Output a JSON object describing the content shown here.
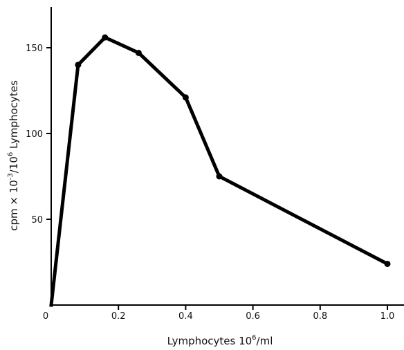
{
  "chart_data": {
    "type": "line",
    "title": "",
    "xlabel": "Lymphocytes 10",
    "xlabel_sup": "6",
    "xlabel_suffix": "/ml",
    "ylabel": "cpm × 10",
    "ylabel_sup1": "-3",
    "ylabel_mid": "/10",
    "ylabel_sup2": "6",
    "ylabel_suffix": " Lymphocytes",
    "xlim": [
      0,
      1.05
    ],
    "ylim": [
      0,
      180
    ],
    "x_ticks": [
      0,
      0.2,
      0.4,
      0.6,
      0.8,
      1.0
    ],
    "x_tick_labels": [
      "0",
      "0.2",
      "0.4",
      "0.6",
      "0.8",
      "1.0"
    ],
    "y_ticks": [
      50,
      100,
      150
    ],
    "y_tick_labels": [
      "50",
      "100",
      "150"
    ],
    "grid": false,
    "series": [
      {
        "x": [
          0,
          0.08,
          0.16,
          0.26,
          0.4,
          0.5,
          1.0
        ],
        "y": [
          0,
          140,
          156,
          147,
          121,
          75,
          24
        ]
      }
    ]
  }
}
